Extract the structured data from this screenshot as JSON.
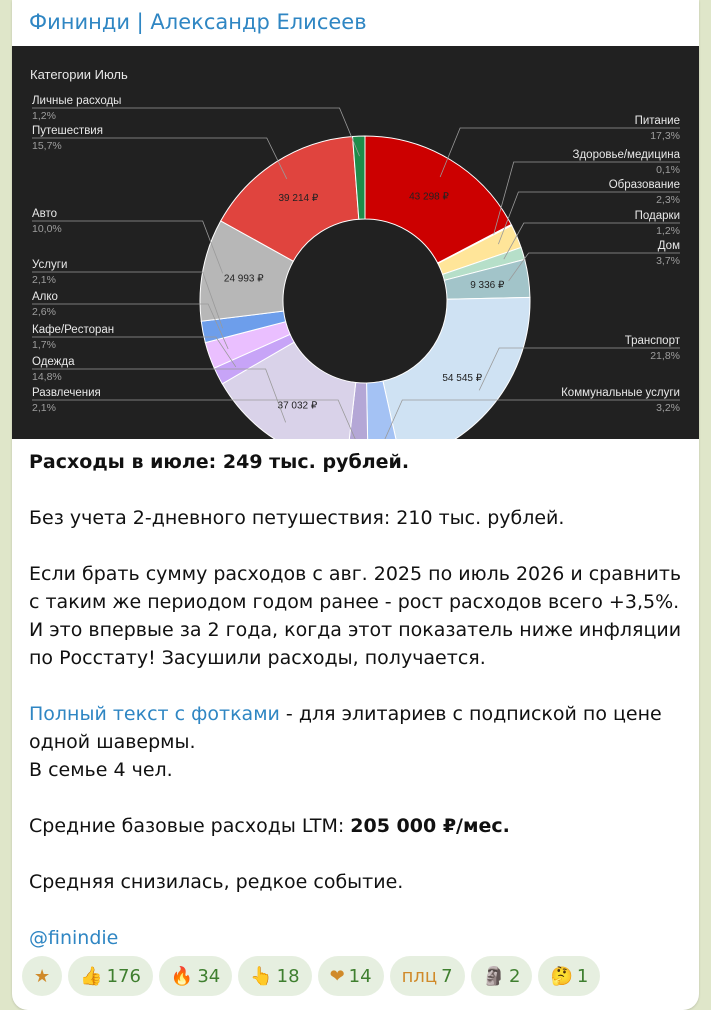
{
  "channel": {
    "title": "Фининди | Александр Елисеев"
  },
  "chart_data": {
    "type": "pie",
    "title": "Категории Июль",
    "slices": [
      {
        "label": "Питание",
        "percent": "17,3%",
        "value": "43 298 ₽",
        "pct": 17.3,
        "color": "#cc0000"
      },
      {
        "label": "Здоровье/медицина",
        "percent": "0,1%",
        "value": "",
        "pct": 0.1,
        "color": "#ffe599"
      },
      {
        "label": "Образование",
        "percent": "2,3%",
        "value": "",
        "pct": 2.3,
        "color": "#ffe599"
      },
      {
        "label": "Подарки",
        "percent": "1,2%",
        "value": "",
        "pct": 1.2,
        "color": "#b6dfc9"
      },
      {
        "label": "Дом",
        "percent": "3,7%",
        "value": "9 336 ₽",
        "pct": 3.7,
        "color": "#a2c4c9"
      },
      {
        "label": "Транспорт",
        "percent": "21,8%",
        "value": "54 545 ₽",
        "pct": 21.8,
        "color": "#cfe2f3"
      },
      {
        "label": "Коммунальные услуги",
        "percent": "3,2%",
        "value": "",
        "pct": 3.2,
        "color": "#a4c2f4"
      },
      {
        "label": "Развлечения",
        "percent": "2,1%",
        "value": "",
        "pct": 2.1,
        "color": "#b4a7d6"
      },
      {
        "label": "Одежда",
        "percent": "14,8%",
        "value": "37 032 ₽",
        "pct": 14.8,
        "color": "#d9d2e9"
      },
      {
        "label": "Кафе/Ресторан",
        "percent": "1,7%",
        "value": "",
        "pct": 1.7,
        "color": "#c7a4f7"
      },
      {
        "label": "Алко",
        "percent": "2,6%",
        "value": "",
        "pct": 2.6,
        "color": "#eabfff"
      },
      {
        "label": "Услуги",
        "percent": "2,1%",
        "value": "",
        "pct": 2.1,
        "color": "#6d9eeb"
      },
      {
        "label": "Авто",
        "percent": "10,0%",
        "value": "24 993 ₽",
        "pct": 10.0,
        "color": "#b7b7b7"
      },
      {
        "label": "Путешествия",
        "percent": "15,7%",
        "value": "39 214 ₽",
        "pct": 15.7,
        "color": "#e0443e"
      },
      {
        "label": "Личные расходы",
        "percent": "1,2%",
        "value": "",
        "pct": 1.2,
        "color": "#1e8c4a"
      }
    ]
  },
  "message": {
    "p1_bold": "Расходы в июле: 249 тыс. рублей.",
    "p2": "Без учета 2-дневного петушествия: 210 тыс. рублей.",
    "p3": "Если брать сумму расходов с авг. 2025 по июль 2026 и сравнить с таким же периодом годом ранее - рост расходов всего +3,5%. И это впервые за 2 года, когда этот показатель ниже инфляции по Росстату! Засушили расходы, получается.",
    "p4_link": "Полный текст с фотками",
    "p4_rest": " - для элитариев с подпиской по цене одной шавермы.",
    "p4_line2": "В семье 4 чел.",
    "p5_text": "Средние базовые расходы LTM: ",
    "p5_bold": "205 000 ₽/мес.",
    "p6": "Средняя снизилась, редкое событие.",
    "signature": "@finindie"
  },
  "reactions": [
    {
      "icon": "star-icon",
      "glyph": "★",
      "count": ""
    },
    {
      "icon": "thumbs-up-icon",
      "glyph": "👍",
      "count": "176"
    },
    {
      "icon": "fire-icon",
      "glyph": "🔥",
      "count": "34"
    },
    {
      "icon": "pointing-hand-icon",
      "glyph": "👆",
      "count": "18"
    },
    {
      "icon": "heart-icon",
      "glyph": "❤",
      "count": "14"
    },
    {
      "icon": "text-reaction-icon",
      "glyph": "плц",
      "count": "7"
    },
    {
      "icon": "moai-icon",
      "glyph": "🗿",
      "count": "2"
    },
    {
      "icon": "thinking-face-icon",
      "glyph": "🤔",
      "count": "1"
    }
  ]
}
